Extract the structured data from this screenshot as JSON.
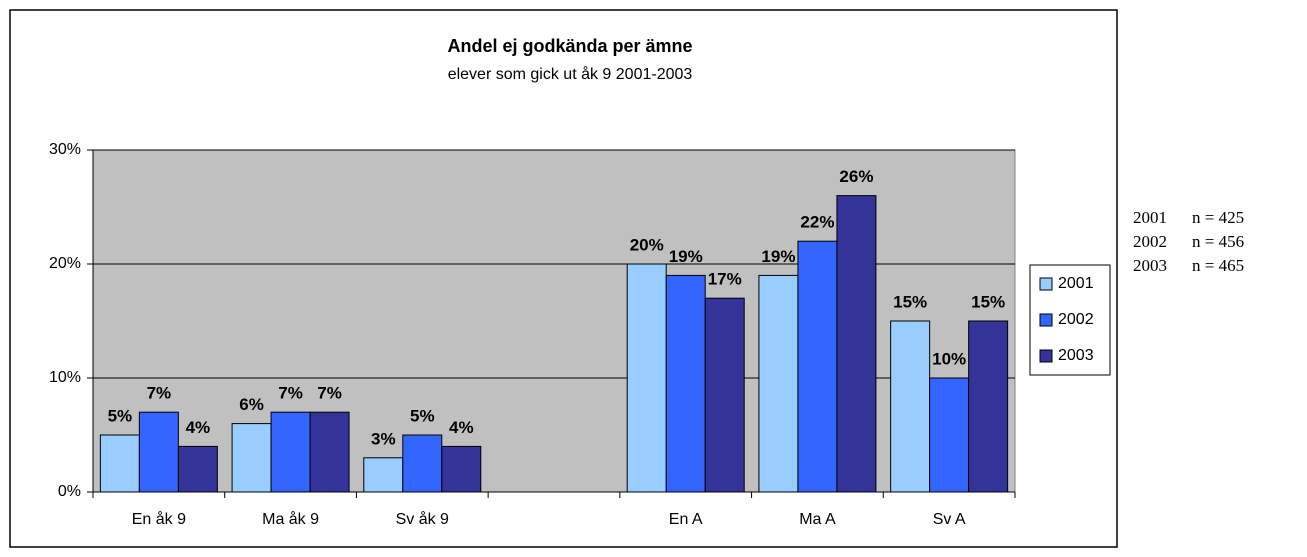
{
  "chart_data": {
    "type": "bar",
    "title": "Andel ej godkända per ämne",
    "subtitle": "elever som gick ut åk 9 2001-2003",
    "categories": [
      "En åk 9",
      "Ma åk 9",
      "Sv åk 9",
      null,
      "En A",
      "Ma A",
      "Sv A"
    ],
    "series": [
      {
        "name": "2001",
        "color": "#99ccff",
        "values": [
          5,
          6,
          3,
          null,
          20,
          19,
          15
        ],
        "value_labels": [
          "5%",
          "6%",
          "3%",
          null,
          "20%",
          "19%",
          "15%"
        ]
      },
      {
        "name": "2002",
        "color": "#3366ff",
        "values": [
          7,
          7,
          5,
          null,
          19,
          22,
          10
        ],
        "value_labels": [
          "7%",
          "7%",
          "5%",
          null,
          "19%",
          "22%",
          "10%"
        ]
      },
      {
        "name": "2003",
        "color": "#333399",
        "values": [
          4,
          7,
          4,
          null,
          17,
          26,
          15
        ],
        "value_labels": [
          "4%",
          "7%",
          "4%",
          null,
          "17%",
          "26%",
          "15%"
        ]
      }
    ],
    "ylim": [
      0,
      30
    ],
    "yticks": [
      {
        "value": 0,
        "label": "0%"
      },
      {
        "value": 10,
        "label": "10%"
      },
      {
        "value": 20,
        "label": "20%"
      },
      {
        "value": 30,
        "label": "30%"
      }
    ],
    "grid": true,
    "legend": "right",
    "notes": [
      {
        "year": "2001",
        "n": "n = 425"
      },
      {
        "year": "2002",
        "n": "n = 456"
      },
      {
        "year": "2003",
        "n": "n = 465"
      }
    ]
  }
}
